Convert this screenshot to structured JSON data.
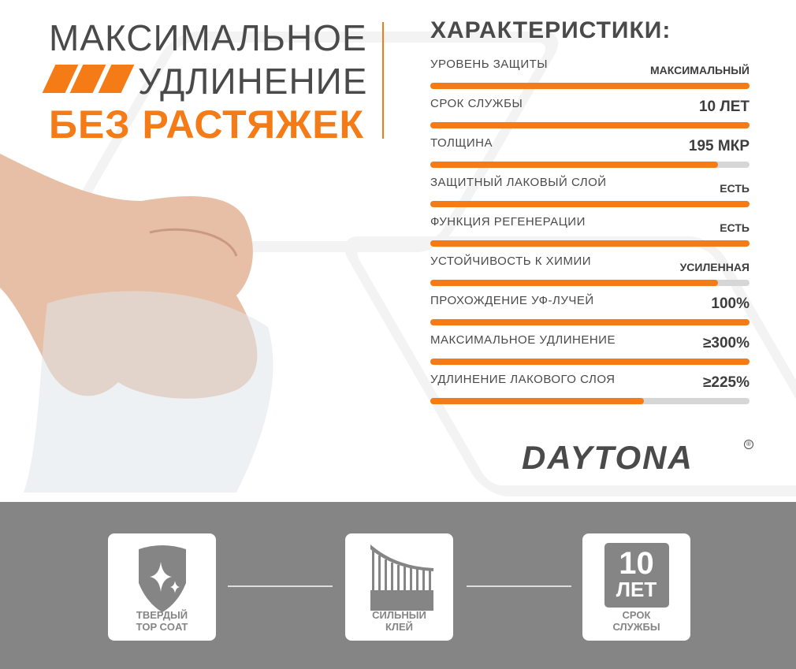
{
  "headline": {
    "line1": "МАКСИМАЛЬНОЕ",
    "line2": "УДЛИНЕНИЕ",
    "line3": "БЕЗ РАСТЯЖЕК"
  },
  "specs": {
    "title": "ХАРАКТЕРИСТИКИ:",
    "rows": [
      {
        "label": "УРОВЕНЬ ЗАЩИТЫ",
        "value": "МАКСИМАЛЬНЫЙ",
        "level": 1.0
      },
      {
        "label": "СРОК СЛУЖБЫ",
        "value": "10 ЛЕТ",
        "level": 1.0
      },
      {
        "label": "ТОЛЩИНА",
        "value": "195 МКР",
        "level": 0.9
      },
      {
        "label": "ЗАЩИТНЫЙ ЛАКОВЫЙ СЛОЙ",
        "value": "ЕСТЬ",
        "level": 1.0
      },
      {
        "label": "ФУНКЦИЯ РЕГЕНЕРАЦИИ",
        "value": "ЕСТЬ",
        "level": 1.0
      },
      {
        "label": "УСТОЙЧИВОСТЬ К ХИМИИ",
        "value": "УСИЛЕННАЯ",
        "level": 0.9
      },
      {
        "label": "ПРОХОЖДЕНИЕ УФ-ЛУЧЕЙ",
        "value": "100%",
        "level": 1.0
      },
      {
        "label": "МАКСИМАЛЬНОЕ УДЛИНЕНИЕ",
        "value": "≥300%",
        "level": 1.0
      },
      {
        "label": "УДЛИНЕНИЕ ЛАКОВОГО СЛОЯ",
        "value": "≥225%",
        "level": 0.67
      }
    ]
  },
  "brand": {
    "name": "DAYTONA",
    "reg": "®"
  },
  "features": [
    {
      "icon": "shield-sparkle-icon",
      "line1": "ТВЕРДЫЙ",
      "line2": "TOP COAT"
    },
    {
      "icon": "glue-bridge-icon",
      "line1": "СИЛЬНЫЙ",
      "line2": "КЛЕЙ"
    },
    {
      "icon": "ten-years-icon",
      "badge1": "10",
      "badge2": "ЛЕТ",
      "line1": "СРОК",
      "line2": "СЛУЖБЫ"
    }
  ],
  "colors": {
    "accent": "#f47b16",
    "text": "#4a4a4a",
    "band": "#858585"
  }
}
